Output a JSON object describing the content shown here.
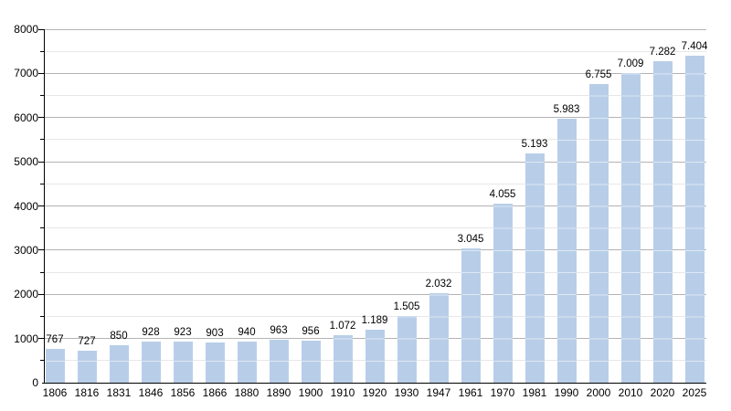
{
  "chart_data": {
    "type": "bar",
    "title": "",
    "xlabel": "",
    "ylabel": "",
    "categories": [
      "1806",
      "1816",
      "1831",
      "1846",
      "1856",
      "1866",
      "1880",
      "1890",
      "1900",
      "1910",
      "1920",
      "1930",
      "1947",
      "1961",
      "1970",
      "1981",
      "1990",
      "2000",
      "2010",
      "2020",
      "2025"
    ],
    "values": [
      767,
      727,
      850,
      928,
      923,
      903,
      940,
      963,
      956,
      1072,
      1189,
      1505,
      2032,
      3045,
      4055,
      5193,
      5983,
      6755,
      7009,
      7282,
      7404
    ],
    "value_labels": [
      "767",
      "727",
      "850",
      "928",
      "923",
      "903",
      "940",
      "963",
      "956",
      "1.072",
      "1.189",
      "1.505",
      "2.032",
      "3.045",
      "4.055",
      "5.193",
      "5.983",
      "6.755",
      "7.009",
      "7.282",
      "7.404"
    ],
    "ylim": [
      0,
      8000
    ],
    "y_major_step": 1000,
    "y_minor_step": 500,
    "y_tick_labels": [
      "0",
      "1000",
      "2000",
      "3000",
      "4000",
      "5000",
      "6000",
      "7000",
      "8000"
    ],
    "grid": true,
    "legend_position": "none",
    "bar_color": "#b8cee8",
    "bar_stripe_color": "rgba(255,255,255,0.5)",
    "major_gridline_color": "#b3b3b3",
    "minor_gridline_color": "#e7e7e7",
    "axis_color": "#000000",
    "label_color": "#000000"
  }
}
